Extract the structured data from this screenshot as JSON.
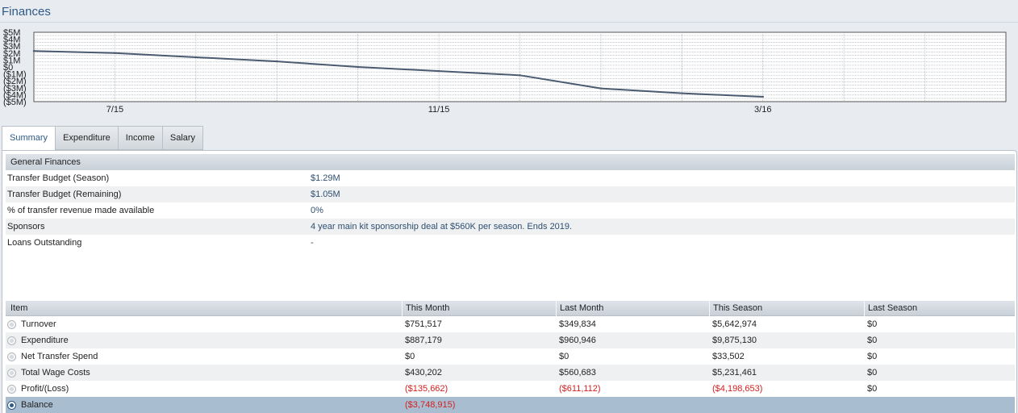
{
  "page": {
    "title": "Finances"
  },
  "chart_data": {
    "type": "line",
    "y_tick_labels": [
      "$5M",
      "$4M",
      "$3M",
      "$2M",
      "$1M",
      "$0",
      "($1M)",
      "($2M)",
      "($3M)",
      "($4M)",
      "($5M)"
    ],
    "y_tick_values": [
      5,
      4,
      3,
      2,
      1,
      0,
      -1,
      -2,
      -3,
      -4,
      -5
    ],
    "ylim": [
      -5,
      5
    ],
    "x_tick_labels": [
      "7/15",
      "11/15",
      "3/16"
    ],
    "x_tick_index": [
      1,
      5,
      9
    ],
    "x_count": 12,
    "grid": true,
    "series": [
      {
        "values": [
          2.3,
          2.0,
          1.4,
          0.8,
          0.0,
          -0.6,
          -1.2,
          -3.1,
          -3.8,
          -4.3
        ]
      }
    ],
    "colors": {
      "line": "#4a5a70",
      "grid": "#9aa4ae",
      "frame": "#555555"
    }
  },
  "tabs": [
    {
      "label": "Summary",
      "active": true
    },
    {
      "label": "Expenditure",
      "active": false
    },
    {
      "label": "Income",
      "active": false
    },
    {
      "label": "Salary",
      "active": false
    }
  ],
  "general": {
    "header": "General Finances",
    "rows": [
      {
        "label": "Transfer Budget (Season)",
        "value": "$1.29M"
      },
      {
        "label": "Transfer Budget (Remaining)",
        "value": "$1.05M"
      },
      {
        "label": "% of transfer revenue made available",
        "value": "0%"
      },
      {
        "label": "Sponsors",
        "value": "4 year main kit sponsorship deal at $560K per season. Ends 2019."
      },
      {
        "label": "Loans Outstanding",
        "value": "-"
      }
    ]
  },
  "table": {
    "headers": [
      "Item",
      "This Month",
      "Last Month",
      "This Season",
      "Last Season"
    ],
    "rows": [
      {
        "item": "Turnover",
        "this_month": "$751,517",
        "last_month": "$349,834",
        "this_season": "$5,642,974",
        "last_season": "$0",
        "negative": false,
        "selected": false
      },
      {
        "item": "Expenditure",
        "this_month": "$887,179",
        "last_month": "$960,946",
        "this_season": "$9,875,130",
        "last_season": "$0",
        "negative": false,
        "selected": false
      },
      {
        "item": "Net Transfer Spend",
        "this_month": "$0",
        "last_month": "$0",
        "this_season": "$33,502",
        "last_season": "$0",
        "negative": false,
        "selected": false
      },
      {
        "item": "Total Wage Costs",
        "this_month": "$430,202",
        "last_month": "$560,683",
        "this_season": "$5,231,461",
        "last_season": "$0",
        "negative": false,
        "selected": false
      },
      {
        "item": "Profit/(Loss)",
        "this_month": "($135,662)",
        "last_month": "($611,112)",
        "this_season": "($4,198,653)",
        "last_season": "$0",
        "negative": true,
        "selected": false
      },
      {
        "item": "Balance",
        "this_month": "($3,748,915)",
        "last_month": "",
        "this_season": "",
        "last_season": "",
        "negative": true,
        "selected": true
      }
    ]
  },
  "colors": {
    "accent": "#2f5a86",
    "negative": "#d32020"
  }
}
